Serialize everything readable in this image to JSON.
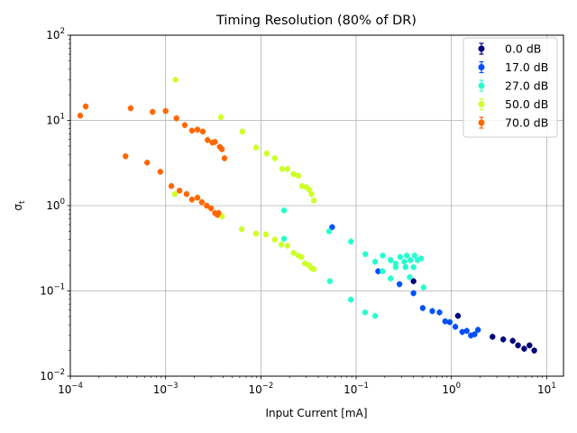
{
  "chart_data": {
    "type": "scatter",
    "title": "Timing Resolution (80% of DR)",
    "xlabel": "Input Current [mA]",
    "ylabel": "σ",
    "ylabel_subscript": "t",
    "xscale": "log",
    "yscale": "log",
    "xlim": [
      0.0001,
      15
    ],
    "ylim": [
      0.01,
      100
    ],
    "x_ticks": [
      {
        "base": "10",
        "exp": "−4",
        "value": 0.0001
      },
      {
        "base": "10",
        "exp": "−3",
        "value": 0.001
      },
      {
        "base": "10",
        "exp": "−2",
        "value": 0.01
      },
      {
        "base": "10",
        "exp": "−1",
        "value": 0.1
      },
      {
        "base": "10",
        "exp": "0",
        "value": 1
      },
      {
        "base": "10",
        "exp": "1",
        "value": 10
      }
    ],
    "y_ticks": [
      {
        "base": "10",
        "exp": "−2",
        "value": 0.01
      },
      {
        "base": "10",
        "exp": "−1",
        "value": 0.1
      },
      {
        "base": "10",
        "exp": "0",
        "value": 1
      },
      {
        "base": "10",
        "exp": "1",
        "value": 10
      },
      {
        "base": "10",
        "exp": "2",
        "value": 100
      }
    ],
    "grid": true,
    "legend_position": "top-right",
    "series": [
      {
        "name": "0.0 dB",
        "color": "#00007f",
        "x": [
          0.4,
          1.17,
          2.7,
          3.5,
          4.4,
          5.0,
          5.8,
          6.6,
          7.4
        ],
        "y": [
          0.13,
          0.051,
          0.029,
          0.027,
          0.026,
          0.023,
          0.021,
          0.023,
          0.02
        ]
      },
      {
        "name": "17.0 dB",
        "color": "#0050ff",
        "x": [
          0.056,
          0.17,
          0.285,
          0.4,
          0.5,
          0.63,
          0.75,
          0.86,
          0.96,
          1.1,
          1.3,
          1.45,
          1.6,
          1.75,
          1.9
        ],
        "y": [
          0.56,
          0.17,
          0.12,
          0.094,
          0.063,
          0.058,
          0.056,
          0.044,
          0.043,
          0.038,
          0.033,
          0.034,
          0.03,
          0.031,
          0.035
        ]
      },
      {
        "name": "27.0 dB",
        "color": "#29ffce",
        "x": [
          0.0175,
          0.0175,
          0.052,
          0.053,
          0.088,
          0.088,
          0.125,
          0.124,
          0.158,
          0.158,
          0.19,
          0.19,
          0.23,
          0.23,
          0.26,
          0.26,
          0.29,
          0.32,
          0.33,
          0.34,
          0.37,
          0.365,
          0.4,
          0.41,
          0.44,
          0.48,
          0.51
        ],
        "y": [
          0.88,
          0.41,
          0.5,
          0.13,
          0.38,
          0.079,
          0.27,
          0.056,
          0.22,
          0.051,
          0.26,
          0.17,
          0.23,
          0.14,
          0.21,
          0.19,
          0.25,
          0.22,
          0.19,
          0.26,
          0.23,
          0.145,
          0.19,
          0.26,
          0.23,
          0.24,
          0.11
        ]
      },
      {
        "name": "50.0 dB",
        "color": "#ceff29",
        "x": [
          0.00127,
          0.0038,
          0.0064,
          0.0089,
          0.0115,
          0.014,
          0.0167,
          0.019,
          0.022,
          0.0247,
          0.027,
          0.03,
          0.032,
          0.034,
          0.036,
          0.00125,
          0.0039,
          0.0063,
          0.0089,
          0.0113,
          0.014,
          0.0164,
          0.019,
          0.022,
          0.0247,
          0.0266,
          0.029,
          0.032,
          0.034,
          0.036
        ],
        "y": [
          30,
          10.9,
          7.4,
          4.8,
          4.1,
          3.6,
          2.7,
          2.7,
          2.35,
          2.25,
          1.7,
          1.65,
          1.55,
          1.37,
          1.15,
          1.37,
          0.75,
          0.53,
          0.47,
          0.46,
          0.4,
          0.35,
          0.34,
          0.28,
          0.26,
          0.25,
          0.21,
          0.2,
          0.185,
          0.18
        ]
      },
      {
        "name": "70.0 dB",
        "color": "#ff6800",
        "x": [
          0.000127,
          0.000145,
          0.00043,
          0.00073,
          0.001,
          0.0013,
          0.00159,
          0.00189,
          0.00216,
          0.00246,
          0.00276,
          0.0031,
          0.0033,
          0.0037,
          0.0039,
          0.00415,
          0.00038,
          0.00064,
          0.00088,
          0.00115,
          0.0014,
          0.00166,
          0.00189,
          0.00216,
          0.0024,
          0.0027,
          0.003,
          0.0033,
          0.0035,
          0.0036
        ],
        "y": [
          11.4,
          14.6,
          13.9,
          12.6,
          12.9,
          10.6,
          8.8,
          7.6,
          7.8,
          7.4,
          5.9,
          5.5,
          5.6,
          4.9,
          4.6,
          3.6,
          3.8,
          3.2,
          2.5,
          1.7,
          1.5,
          1.37,
          1.18,
          1.24,
          1.1,
          1.0,
          0.93,
          0.82,
          0.78,
          0.82
        ]
      }
    ]
  }
}
